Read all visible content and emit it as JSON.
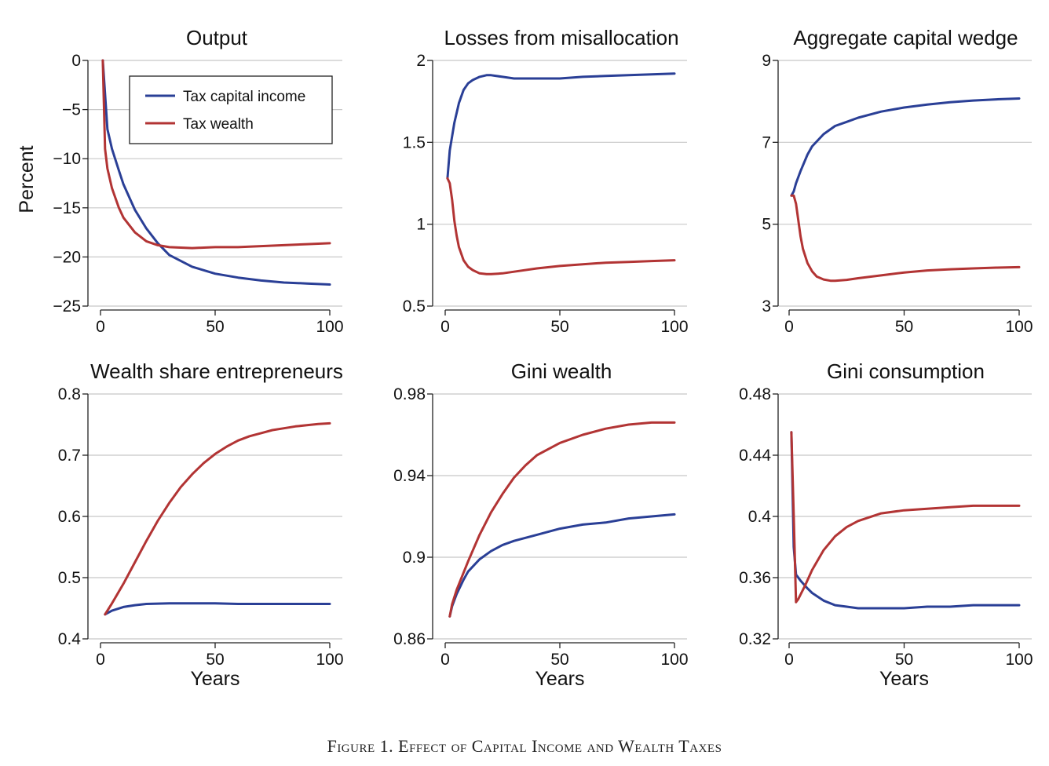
{
  "caption": "Figure 1. Effect of Capital Income and Wealth Taxes",
  "colors": {
    "tax_capital_income": "#2a3f96",
    "tax_wealth": "#b23434"
  },
  "legend": {
    "placement": "top-right",
    "panel": 0
  },
  "chart_data": [
    {
      "type": "line",
      "title": "Output",
      "xlabel": "",
      "ylabel": "Percent",
      "xlim": [
        0,
        100
      ],
      "ylim": [
        -25,
        0
      ],
      "xticks": [
        "0",
        "50",
        "100"
      ],
      "yticks": [
        "0",
        "−5",
        "−10",
        "−15",
        "−20",
        "−25"
      ],
      "grid": true,
      "series": [
        {
          "name": "Tax capital income",
          "x": [
            1,
            3,
            5,
            8,
            10,
            15,
            20,
            25,
            30,
            40,
            50,
            60,
            70,
            80,
            90,
            100
          ],
          "values": [
            0,
            -7,
            -9,
            -11.2,
            -12.6,
            -15.2,
            -17.1,
            -18.6,
            -19.8,
            -21.0,
            -21.7,
            -22.1,
            -22.4,
            -22.6,
            -22.7,
            -22.8
          ]
        },
        {
          "name": "Tax wealth",
          "x": [
            1,
            2,
            3,
            5,
            8,
            10,
            15,
            20,
            25,
            30,
            40,
            50,
            60,
            70,
            80,
            90,
            100
          ],
          "values": [
            0,
            -9,
            -11,
            -13,
            -15,
            -16,
            -17.5,
            -18.4,
            -18.8,
            -19.0,
            -19.1,
            -19.0,
            -19.0,
            -18.9,
            -18.8,
            -18.7,
            -18.6
          ]
        }
      ]
    },
    {
      "type": "line",
      "title": "Losses from misallocation",
      "xlabel": "",
      "ylabel": "",
      "xlim": [
        0,
        100
      ],
      "ylim": [
        0.5,
        2
      ],
      "xticks": [
        "0",
        "50",
        "100"
      ],
      "yticks": [
        "2",
        "1.5",
        "1",
        "0.5"
      ],
      "grid": true,
      "series": [
        {
          "name": "Tax capital income",
          "x": [
            1,
            2,
            4,
            6,
            8,
            10,
            12,
            15,
            18,
            20,
            25,
            30,
            40,
            50,
            60,
            70,
            80,
            90,
            100
          ],
          "values": [
            1.28,
            1.45,
            1.62,
            1.74,
            1.82,
            1.86,
            1.88,
            1.9,
            1.91,
            1.91,
            1.9,
            1.89,
            1.89,
            1.89,
            1.9,
            1.905,
            1.91,
            1.915,
            1.92
          ]
        },
        {
          "name": "Tax wealth",
          "x": [
            1,
            2,
            3,
            4,
            5,
            6,
            8,
            10,
            12,
            15,
            18,
            20,
            25,
            30,
            40,
            50,
            60,
            70,
            80,
            90,
            100
          ],
          "values": [
            1.28,
            1.25,
            1.15,
            1.02,
            0.93,
            0.86,
            0.78,
            0.74,
            0.72,
            0.7,
            0.695,
            0.695,
            0.7,
            0.71,
            0.73,
            0.745,
            0.755,
            0.765,
            0.77,
            0.775,
            0.78
          ]
        }
      ]
    },
    {
      "type": "line",
      "title": "Aggregate capital wedge",
      "xlabel": "",
      "ylabel": "",
      "xlim": [
        0,
        100
      ],
      "ylim": [
        3,
        9
      ],
      "xticks": [
        "0",
        "50",
        "100"
      ],
      "yticks": [
        "9",
        "7",
        "5",
        "3"
      ],
      "grid": true,
      "series": [
        {
          "name": "Tax capital income",
          "x": [
            1,
            2,
            3,
            5,
            8,
            10,
            15,
            20,
            25,
            30,
            40,
            50,
            60,
            70,
            80,
            90,
            100
          ],
          "values": [
            5.7,
            5.8,
            6.0,
            6.3,
            6.7,
            6.9,
            7.2,
            7.4,
            7.5,
            7.6,
            7.75,
            7.85,
            7.92,
            7.98,
            8.02,
            8.05,
            8.07
          ]
        },
        {
          "name": "Tax wealth",
          "x": [
            1,
            2,
            3,
            4,
            5,
            6,
            8,
            10,
            12,
            15,
            18,
            20,
            25,
            30,
            40,
            50,
            60,
            70,
            80,
            90,
            100
          ],
          "values": [
            5.7,
            5.7,
            5.5,
            5.1,
            4.7,
            4.4,
            4.05,
            3.85,
            3.72,
            3.65,
            3.62,
            3.62,
            3.64,
            3.68,
            3.75,
            3.82,
            3.87,
            3.9,
            3.92,
            3.94,
            3.95
          ]
        }
      ]
    },
    {
      "type": "line",
      "title": "Wealth share entrepreneurs",
      "xlabel": "Years",
      "ylabel": "",
      "xlim": [
        0,
        100
      ],
      "ylim": [
        0.4,
        0.8
      ],
      "xticks": [
        "0",
        "50",
        "100"
      ],
      "yticks": [
        "0.8",
        "0.7",
        "0.6",
        "0.5",
        "0.4"
      ],
      "grid": true,
      "series": [
        {
          "name": "Tax capital income",
          "x": [
            2,
            5,
            10,
            15,
            20,
            30,
            40,
            50,
            60,
            70,
            80,
            90,
            100
          ],
          "values": [
            0.44,
            0.446,
            0.452,
            0.455,
            0.457,
            0.458,
            0.458,
            0.458,
            0.457,
            0.457,
            0.457,
            0.457,
            0.457
          ]
        },
        {
          "name": "Tax wealth",
          "x": [
            2,
            5,
            10,
            15,
            20,
            25,
            30,
            35,
            40,
            45,
            50,
            55,
            60,
            65,
            70,
            75,
            80,
            85,
            90,
            95,
            100
          ],
          "values": [
            0.44,
            0.458,
            0.49,
            0.525,
            0.56,
            0.593,
            0.622,
            0.648,
            0.669,
            0.687,
            0.702,
            0.714,
            0.724,
            0.731,
            0.736,
            0.741,
            0.744,
            0.747,
            0.749,
            0.751,
            0.752
          ]
        }
      ]
    },
    {
      "type": "line",
      "title": "Gini wealth",
      "xlabel": "Years",
      "ylabel": "",
      "xlim": [
        0,
        100
      ],
      "ylim": [
        0.86,
        0.98
      ],
      "xticks": [
        "0",
        "50",
        "100"
      ],
      "yticks": [
        "0.98",
        "0.94",
        "0.9",
        "0.86"
      ],
      "grid": true,
      "series": [
        {
          "name": "Tax capital income",
          "x": [
            2,
            3,
            5,
            8,
            10,
            15,
            20,
            25,
            30,
            40,
            50,
            60,
            70,
            80,
            90,
            100
          ],
          "values": [
            0.871,
            0.876,
            0.882,
            0.889,
            0.893,
            0.899,
            0.903,
            0.906,
            0.908,
            0.911,
            0.914,
            0.916,
            0.917,
            0.919,
            0.92,
            0.921
          ]
        },
        {
          "name": "Tax wealth",
          "x": [
            2,
            3,
            5,
            10,
            15,
            20,
            25,
            30,
            35,
            40,
            50,
            60,
            70,
            80,
            90,
            100
          ],
          "values": [
            0.871,
            0.877,
            0.884,
            0.898,
            0.911,
            0.922,
            0.931,
            0.939,
            0.945,
            0.95,
            0.956,
            0.96,
            0.963,
            0.965,
            0.966,
            0.966
          ]
        }
      ]
    },
    {
      "type": "line",
      "title": "Gini consumption",
      "xlabel": "Years",
      "ylabel": "",
      "xlim": [
        0,
        100
      ],
      "ylim": [
        0.32,
        0.48
      ],
      "xticks": [
        "0",
        "50",
        "100"
      ],
      "yticks": [
        "0.48",
        "0.44",
        "0.4",
        "0.36",
        "0.32"
      ],
      "grid": true,
      "series": [
        {
          "name": "Tax capital income",
          "x": [
            1,
            2,
            3,
            5,
            8,
            10,
            15,
            20,
            25,
            30,
            40,
            50,
            60,
            70,
            80,
            90,
            100
          ],
          "values": [
            0.455,
            0.38,
            0.362,
            0.358,
            0.353,
            0.35,
            0.345,
            0.342,
            0.341,
            0.34,
            0.34,
            0.34,
            0.341,
            0.341,
            0.342,
            0.342,
            0.342
          ]
        },
        {
          "name": "Tax wealth",
          "x": [
            1,
            2,
            3,
            4,
            5,
            7,
            10,
            15,
            20,
            25,
            30,
            40,
            50,
            60,
            70,
            80,
            90,
            100
          ],
          "values": [
            0.455,
            0.4,
            0.344,
            0.346,
            0.349,
            0.355,
            0.365,
            0.378,
            0.387,
            0.393,
            0.397,
            0.402,
            0.404,
            0.405,
            0.406,
            0.407,
            0.407,
            0.407
          ]
        }
      ]
    }
  ]
}
